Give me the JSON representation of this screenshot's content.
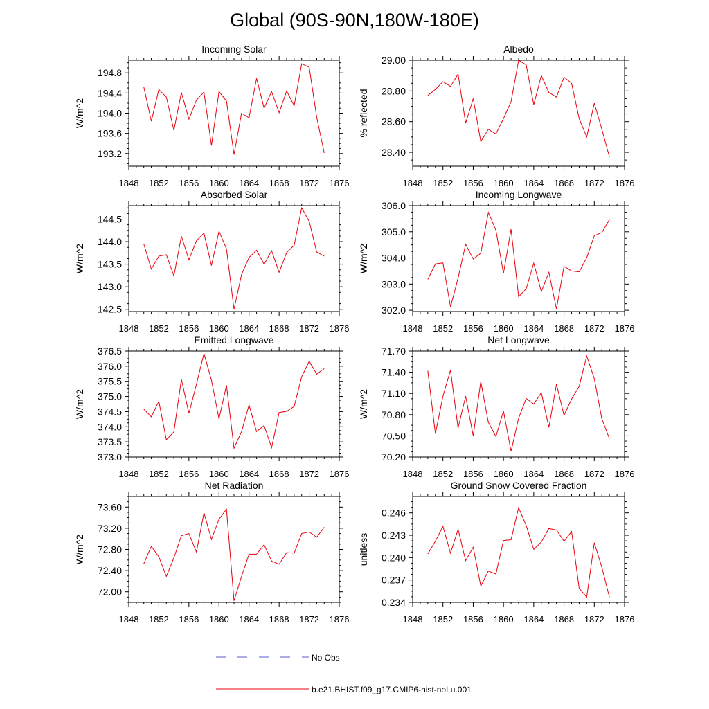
{
  "figure_title": "Global (90S-90N,180W-180E)",
  "colors": {
    "model": "#e8000b",
    "obs": "#5a5ad0",
    "axis": "#000000"
  },
  "legend": {
    "obs_label": "No Obs",
    "model_label": "b.e21.BHIST.f09_g17.CMIP6-hist-noLu.001"
  },
  "chart_data": [
    {
      "type": "line",
      "title": "Incoming Solar",
      "ylabel": "W/m^2",
      "xlim": [
        1848,
        1876
      ],
      "xticks": [
        "1848",
        "1852",
        "1856",
        "1860",
        "1864",
        "1868",
        "1872",
        "1876"
      ],
      "ylim": [
        192.95,
        195.05
      ],
      "yticks": [
        "193.2",
        "193.6",
        "194.0",
        "194.4",
        "194.8"
      ],
      "grid": false,
      "series": [
        {
          "x": [
            1850,
            1851,
            1852,
            1853,
            1854,
            1855,
            1856,
            1857,
            1858,
            1859,
            1860,
            1861,
            1862,
            1863,
            1864,
            1865,
            1866,
            1867,
            1868,
            1869,
            1870,
            1871,
            1872,
            1873,
            1874
          ],
          "values": [
            194.52,
            193.84,
            194.47,
            194.32,
            193.66,
            194.41,
            193.88,
            194.26,
            194.42,
            193.36,
            194.43,
            194.24,
            193.18,
            194.0,
            193.91,
            194.69,
            194.1,
            194.43,
            194.01,
            194.44,
            194.15,
            194.98,
            194.91,
            193.92,
            193.21
          ]
        }
      ]
    },
    {
      "type": "line",
      "title": "Albedo",
      "ylabel": "% reflected",
      "xlim": [
        1848,
        1876
      ],
      "xticks": [
        "1848",
        "1852",
        "1856",
        "1860",
        "1864",
        "1868",
        "1872",
        "1876"
      ],
      "ylim": [
        28.31,
        29.0
      ],
      "yticks": [
        "28.40",
        "28.60",
        "28.80",
        "29.00"
      ],
      "grid": false,
      "series": [
        {
          "x": [
            1850,
            1851,
            1852,
            1853,
            1854,
            1855,
            1856,
            1857,
            1858,
            1859,
            1860,
            1861,
            1862,
            1863,
            1864,
            1865,
            1866,
            1867,
            1868,
            1869,
            1870,
            1871,
            1872,
            1873,
            1874
          ],
          "values": [
            28.77,
            28.81,
            28.86,
            28.83,
            28.91,
            28.59,
            28.75,
            28.47,
            28.55,
            28.52,
            28.62,
            28.73,
            29.0,
            28.97,
            28.71,
            28.9,
            28.79,
            28.76,
            28.89,
            28.85,
            28.62,
            28.5,
            28.72,
            28.55,
            28.37
          ]
        }
      ]
    },
    {
      "type": "line",
      "title": "Absorbed Solar",
      "ylabel": "W/m^2",
      "xlim": [
        1848,
        1876
      ],
      "xticks": [
        "1848",
        "1852",
        "1856",
        "1860",
        "1864",
        "1868",
        "1872",
        "1876"
      ],
      "ylim": [
        142.45,
        144.8
      ],
      "yticks": [
        "142.5",
        "143.0",
        "143.5",
        "144.0",
        "144.5"
      ],
      "grid": false,
      "series": [
        {
          "x": [
            1850,
            1851,
            1852,
            1853,
            1854,
            1855,
            1856,
            1857,
            1858,
            1859,
            1860,
            1861,
            1862,
            1863,
            1864,
            1865,
            1866,
            1867,
            1868,
            1869,
            1870,
            1871,
            1872,
            1873,
            1874
          ],
          "values": [
            143.95,
            143.39,
            143.68,
            143.71,
            143.24,
            144.12,
            143.6,
            144.02,
            144.19,
            143.47,
            144.23,
            143.84,
            142.5,
            143.27,
            143.65,
            143.81,
            143.5,
            143.8,
            143.32,
            143.76,
            143.92,
            144.75,
            144.45,
            143.77,
            143.68
          ]
        }
      ]
    },
    {
      "type": "line",
      "title": "Incoming Longwave",
      "ylabel": "W/m^2",
      "xlim": [
        1848,
        1876
      ],
      "xticks": [
        "1848",
        "1852",
        "1856",
        "1860",
        "1864",
        "1868",
        "1872",
        "1876"
      ],
      "ylim": [
        301.95,
        306.0
      ],
      "yticks": [
        "302.0",
        "303.0",
        "304.0",
        "305.0",
        "306.0"
      ],
      "grid": false,
      "series": [
        {
          "x": [
            1850,
            1851,
            1852,
            1853,
            1854,
            1855,
            1856,
            1857,
            1858,
            1859,
            1860,
            1861,
            1862,
            1863,
            1864,
            1865,
            1866,
            1867,
            1868,
            1869,
            1870,
            1871,
            1872,
            1873,
            1874
          ],
          "values": [
            303.18,
            303.77,
            303.81,
            302.13,
            303.23,
            304.52,
            303.96,
            304.18,
            305.74,
            305.06,
            303.41,
            305.1,
            302.52,
            302.82,
            303.8,
            302.71,
            303.45,
            302.05,
            303.68,
            303.5,
            303.47,
            304.01,
            304.85,
            304.97,
            305.47
          ]
        }
      ]
    },
    {
      "type": "line",
      "title": "Emitted Longwave",
      "ylabel": "W/m^2",
      "xlim": [
        1848,
        1876
      ],
      "xticks": [
        "1848",
        "1852",
        "1856",
        "1860",
        "1864",
        "1868",
        "1872",
        "1876"
      ],
      "ylim": [
        373.0,
        376.5
      ],
      "yticks": [
        "373.0",
        "373.5",
        "374.0",
        "374.5",
        "375.0",
        "375.5",
        "376.0",
        "376.5"
      ],
      "grid": false,
      "series": [
        {
          "x": [
            1850,
            1851,
            1852,
            1853,
            1854,
            1855,
            1856,
            1857,
            1858,
            1859,
            1860,
            1861,
            1862,
            1863,
            1864,
            1865,
            1866,
            1867,
            1868,
            1869,
            1870,
            1871,
            1872,
            1873,
            1874
          ],
          "values": [
            374.58,
            374.33,
            374.84,
            373.57,
            373.83,
            375.57,
            374.44,
            375.4,
            376.42,
            375.54,
            374.26,
            375.37,
            373.29,
            373.84,
            374.72,
            373.84,
            374.04,
            373.31,
            374.47,
            374.51,
            374.67,
            375.65,
            376.16,
            375.74,
            375.92
          ]
        }
      ]
    },
    {
      "type": "line",
      "title": "Net Longwave",
      "ylabel": "W/m^2",
      "xlim": [
        1848,
        1876
      ],
      "xticks": [
        "1848",
        "1852",
        "1856",
        "1860",
        "1864",
        "1868",
        "1872",
        "1876"
      ],
      "ylim": [
        70.2,
        71.7
      ],
      "yticks": [
        "70.20",
        "70.50",
        "70.80",
        "71.10",
        "71.40",
        "71.70"
      ],
      "grid": false,
      "series": [
        {
          "x": [
            1850,
            1851,
            1852,
            1853,
            1854,
            1855,
            1856,
            1857,
            1858,
            1859,
            1860,
            1861,
            1862,
            1863,
            1864,
            1865,
            1866,
            1867,
            1868,
            1869,
            1870,
            1871,
            1872,
            1873,
            1874
          ],
          "values": [
            71.42,
            70.53,
            71.06,
            71.43,
            70.61,
            71.06,
            70.5,
            71.27,
            70.69,
            70.49,
            70.85,
            70.28,
            70.75,
            71.03,
            70.95,
            71.11,
            70.62,
            71.23,
            70.79,
            71.02,
            71.2,
            71.63,
            71.31,
            70.74,
            70.46
          ]
        }
      ]
    },
    {
      "type": "line",
      "title": "Net Radiation",
      "ylabel": "W/m^2",
      "xlim": [
        1848,
        1876
      ],
      "xticks": [
        "1848",
        "1852",
        "1856",
        "1860",
        "1864",
        "1868",
        "1872",
        "1876"
      ],
      "ylim": [
        71.8,
        73.8
      ],
      "yticks": [
        "72.00",
        "72.40",
        "72.80",
        "73.20",
        "73.60"
      ],
      "grid": false,
      "series": [
        {
          "x": [
            1850,
            1851,
            1852,
            1853,
            1854,
            1855,
            1856,
            1857,
            1858,
            1859,
            1860,
            1861,
            1862,
            1863,
            1864,
            1865,
            1866,
            1867,
            1868,
            1869,
            1870,
            1871,
            1872,
            1873,
            1874
          ],
          "values": [
            72.53,
            72.86,
            72.66,
            72.29,
            72.64,
            73.06,
            73.1,
            72.75,
            73.49,
            72.99,
            73.37,
            73.56,
            71.83,
            72.29,
            72.71,
            72.71,
            72.89,
            72.58,
            72.52,
            72.74,
            72.73,
            73.1,
            73.13,
            73.03,
            73.22
          ]
        }
      ]
    },
    {
      "type": "line",
      "title": "Ground Snow Covered Fraction",
      "ylabel": "unitless",
      "xlim": [
        1848,
        1876
      ],
      "xticks": [
        "1848",
        "1852",
        "1856",
        "1860",
        "1864",
        "1868",
        "1872",
        "1876"
      ],
      "ylim": [
        0.234,
        0.2482
      ],
      "yticks": [
        "0.234",
        "0.237",
        "0.240",
        "0.243",
        "0.246"
      ],
      "grid": false,
      "series": [
        {
          "x": [
            1850,
            1851,
            1852,
            1853,
            1854,
            1855,
            1856,
            1857,
            1858,
            1859,
            1860,
            1861,
            1862,
            1863,
            1864,
            1865,
            1866,
            1867,
            1868,
            1869,
            1870,
            1871,
            1872,
            1873,
            1874
          ],
          "values": [
            0.2405,
            0.2422,
            0.2442,
            0.2406,
            0.2438,
            0.2396,
            0.2414,
            0.2362,
            0.2382,
            0.2378,
            0.2423,
            0.2424,
            0.2467,
            0.2443,
            0.2411,
            0.2421,
            0.2439,
            0.2437,
            0.2422,
            0.2435,
            0.2359,
            0.2347,
            0.242,
            0.2387,
            0.2347
          ]
        }
      ]
    }
  ]
}
